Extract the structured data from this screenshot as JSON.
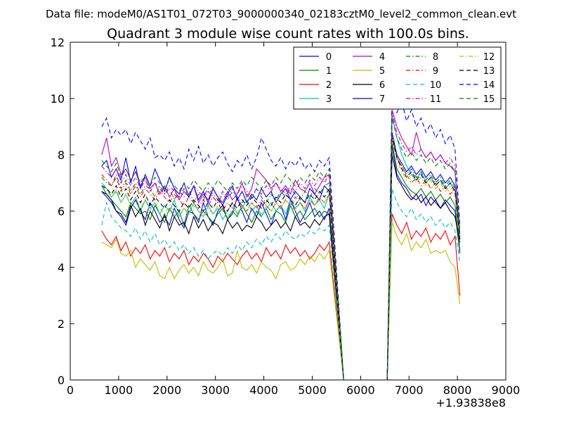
{
  "figure": {
    "suptitle": "Data file: modeM0/AS1T01_072T03_9000000340_02183cztM0_level2_common_clean.evt"
  },
  "chart_data": {
    "type": "line",
    "title": "Quadrant 3 module wise count rates with 100.0s bins.",
    "xlabel": "",
    "ylabel": "",
    "x_offset_label": "+1.93838e8",
    "xlim": [
      0,
      9000
    ],
    "ylim": [
      0,
      12
    ],
    "xticks": [
      0,
      1000,
      2000,
      3000,
      4000,
      5000,
      6000,
      7000,
      8000,
      9000
    ],
    "yticks": [
      0,
      2,
      4,
      6,
      8,
      10,
      12
    ],
    "grid": false,
    "legend_position": "top-right",
    "legend_columns": 4,
    "segments": {
      "seg1_x": {
        "start": 650,
        "step": 100,
        "count": 48
      },
      "gap_x": [
        5650,
        6550
      ],
      "seg2_x": {
        "start": 6650,
        "step": 100,
        "count": 15
      }
    },
    "series": [
      {
        "name": "0",
        "color": "#0000ff",
        "dash": "solid",
        "seg1": [
          6.7,
          6.5,
          6.3,
          6.0,
          5.8,
          5.5,
          6.1,
          6.4,
          6.0,
          5.7,
          6.3,
          6.0,
          5.6,
          5.8,
          5.5,
          6.1,
          5.7,
          5.4,
          6.0,
          5.9,
          5.6,
          6.3,
          5.8,
          5.5,
          6.0,
          6.2,
          5.7,
          5.9,
          6.5,
          6.0,
          5.6,
          6.1,
          5.8,
          6.3,
          5.9,
          5.5,
          6.0,
          6.2,
          5.7,
          6.4,
          6.0,
          5.6,
          5.9,
          6.3,
          5.8,
          6.0,
          5.7,
          6.1
        ],
        "seg2": [
          8.3,
          7.3,
          7.0,
          6.8,
          6.5,
          6.4,
          6.6,
          6.2,
          6.5,
          6.3,
          6.1,
          6.4,
          6.2,
          6.0,
          4.5
        ]
      },
      {
        "name": "1",
        "color": "#008000",
        "dash": "solid",
        "seg1": [
          6.9,
          6.6,
          6.4,
          6.2,
          6.0,
          5.8,
          6.3,
          6.1,
          5.9,
          6.0,
          5.7,
          6.2,
          5.9,
          5.6,
          6.1,
          5.8,
          6.0,
          5.5,
          6.2,
          5.9,
          5.7,
          6.0,
          5.8,
          5.6,
          5.9,
          6.1,
          5.7,
          6.0,
          5.8,
          6.2,
          5.9,
          5.6,
          6.0,
          5.8,
          6.1,
          5.7,
          6.0,
          5.9,
          5.6,
          6.2,
          5.8,
          6.0,
          5.7,
          5.9,
          6.1,
          5.8,
          6.0,
          5.9
        ],
        "seg2": [
          8.4,
          7.5,
          7.2,
          6.9,
          6.7,
          6.6,
          6.8,
          6.5,
          6.7,
          6.4,
          6.6,
          6.3,
          6.5,
          6.2,
          4.6
        ]
      },
      {
        "name": "2",
        "color": "#ff0000",
        "dash": "solid",
        "seg1": [
          5.3,
          5.0,
          4.8,
          5.1,
          4.6,
          4.9,
          4.4,
          4.7,
          4.5,
          4.8,
          4.3,
          4.6,
          4.4,
          4.7,
          4.2,
          4.5,
          4.3,
          4.6,
          4.1,
          4.4,
          4.2,
          4.5,
          4.3,
          4.0,
          4.4,
          4.2,
          4.5,
          4.3,
          4.1,
          4.4,
          4.6,
          4.3,
          4.5,
          4.2,
          4.7,
          4.4,
          4.6,
          4.3,
          4.8,
          4.5,
          4.7,
          4.4,
          4.6,
          4.3,
          4.5,
          4.8,
          4.6,
          4.9
        ],
        "seg2": [
          5.9,
          5.5,
          5.2,
          5.6,
          5.0,
          5.3,
          5.1,
          5.4,
          4.9,
          5.2,
          5.0,
          5.3,
          4.8,
          5.1,
          3.0
        ]
      },
      {
        "name": "3",
        "color": "#00bfbf",
        "dash": "solid",
        "seg1": [
          7.0,
          6.8,
          6.5,
          6.7,
          6.3,
          6.6,
          6.2,
          6.5,
          6.0,
          6.4,
          6.1,
          6.3,
          5.9,
          6.2,
          6.0,
          6.4,
          5.8,
          6.1,
          5.9,
          6.3,
          6.0,
          5.8,
          6.2,
          5.9,
          6.1,
          5.7,
          6.0,
          6.3,
          5.9,
          6.1,
          6.4,
          6.0,
          6.2,
          5.8,
          6.1,
          6.3,
          6.0,
          6.2,
          5.9,
          6.4,
          6.1,
          6.3,
          6.0,
          6.5,
          6.2,
          6.4,
          6.1,
          6.6
        ],
        "seg2": [
          9.4,
          8.6,
          8.0,
          7.6,
          7.3,
          7.1,
          7.4,
          7.0,
          7.2,
          6.9,
          7.1,
          6.8,
          7.0,
          6.7,
          4.8
        ]
      },
      {
        "name": "4",
        "color": "#bf00bf",
        "dash": "solid",
        "seg1": [
          8.0,
          8.6,
          7.6,
          7.9,
          7.3,
          7.5,
          7.1,
          7.4,
          6.9,
          7.2,
          6.8,
          7.0,
          6.6,
          6.9,
          6.5,
          6.8,
          6.4,
          6.7,
          6.5,
          6.9,
          6.3,
          6.6,
          6.4,
          6.8,
          6.5,
          6.3,
          6.7,
          6.4,
          6.6,
          7.0,
          6.5,
          6.8,
          7.5,
          7.3,
          7.1,
          6.8,
          7.0,
          6.7,
          6.9,
          6.6,
          7.1,
          6.8,
          6.7,
          7.0,
          6.6,
          6.9,
          7.2,
          7.3
        ],
        "seg2": [
          9.6,
          9.0,
          8.6,
          8.3,
          8.0,
          8.8,
          8.2,
          7.9,
          8.1,
          7.8,
          8.0,
          7.7,
          7.6,
          7.4,
          5.2
        ]
      },
      {
        "name": "5",
        "color": "#bfbf00",
        "dash": "solid",
        "seg1": [
          4.9,
          4.8,
          4.7,
          5.0,
          4.5,
          4.4,
          4.6,
          4.0,
          4.3,
          4.1,
          3.9,
          4.2,
          3.7,
          3.6,
          4.0,
          3.6,
          3.9,
          4.1,
          3.8,
          4.0,
          3.7,
          4.2,
          3.9,
          3.8,
          4.0,
          4.3,
          3.7,
          3.8,
          4.6,
          4.0,
          3.9,
          4.1,
          3.8,
          4.2,
          4.0,
          3.9,
          3.6,
          4.1,
          4.2,
          3.9,
          4.0,
          4.3,
          4.1,
          4.4,
          4.2,
          4.5,
          4.3,
          4.6
        ],
        "seg2": [
          5.6,
          5.1,
          4.8,
          5.2,
          4.6,
          4.9,
          4.7,
          5.0,
          4.5,
          4.6,
          4.5,
          4.6,
          4.2,
          4.0,
          2.7
        ]
      },
      {
        "name": "6",
        "color": "#000000",
        "dash": "solid",
        "seg1": [
          6.7,
          6.6,
          6.4,
          6.0,
          5.9,
          5.6,
          6.2,
          5.8,
          6.1,
          5.5,
          6.0,
          5.7,
          5.4,
          5.9,
          5.3,
          5.8,
          5.5,
          5.6,
          5.2,
          5.8,
          5.4,
          5.7,
          5.3,
          5.6,
          5.5,
          5.2,
          5.7,
          5.4,
          5.6,
          5.3,
          5.5,
          5.4,
          5.8,
          5.6,
          5.3,
          5.5,
          5.7,
          5.4,
          5.6,
          5.3,
          5.8,
          5.5,
          5.6,
          5.4,
          5.7,
          5.5,
          5.8,
          5.9
        ],
        "seg2": [
          8.0,
          7.2,
          6.9,
          6.6,
          6.4,
          6.6,
          6.3,
          6.5,
          6.2,
          6.4,
          6.1,
          6.3,
          6.0,
          5.8,
          4.9
        ]
      },
      {
        "name": "7",
        "color": "#0000ff",
        "dash": "solid",
        "seg1": [
          7.6,
          7.8,
          7.2,
          7.5,
          7.1,
          7.9,
          7.0,
          7.6,
          6.8,
          7.3,
          6.9,
          7.5,
          7.1,
          6.7,
          7.2,
          6.8,
          6.6,
          7.0,
          6.5,
          6.9,
          6.4,
          6.7,
          6.3,
          6.8,
          6.5,
          6.2,
          6.6,
          6.9,
          6.4,
          6.7,
          6.3,
          6.6,
          6.4,
          6.8,
          6.5,
          6.7,
          6.3,
          6.6,
          6.8,
          6.4,
          6.7,
          6.5,
          6.3,
          6.8,
          6.6,
          6.4,
          6.9,
          6.7
        ],
        "seg2": [
          8.8,
          8.0,
          7.7,
          7.4,
          7.6,
          7.3,
          7.5,
          7.2,
          7.4,
          7.1,
          7.3,
          7.0,
          7.2,
          6.9,
          5.0
        ]
      },
      {
        "name": "8",
        "color": "#008000",
        "dash": "dashdot",
        "seg1": [
          7.2,
          7.0,
          6.9,
          7.3,
          6.8,
          7.1,
          6.7,
          7.0,
          6.6,
          6.9,
          6.8,
          6.5,
          6.9,
          6.6,
          6.8,
          6.4,
          6.7,
          6.5,
          6.8,
          6.3,
          6.6,
          6.4,
          6.7,
          6.5,
          6.3,
          6.6,
          6.4,
          6.7,
          6.5,
          6.3,
          6.6,
          6.4,
          6.8,
          6.5,
          6.3,
          6.6,
          6.4,
          6.7,
          6.5,
          6.8,
          6.6,
          6.4,
          6.7,
          6.5,
          6.8,
          6.6,
          6.9,
          7.0
        ],
        "seg2": [
          8.6,
          7.9,
          7.6,
          7.3,
          7.5,
          7.2,
          7.4,
          7.1,
          7.3,
          7.0,
          7.2,
          6.9,
          7.1,
          6.8,
          5.1
        ]
      },
      {
        "name": "9",
        "color": "#ff0000",
        "dash": "dashdot",
        "seg1": [
          7.3,
          7.1,
          6.9,
          7.2,
          6.7,
          7.0,
          6.6,
          6.9,
          6.5,
          6.8,
          6.6,
          6.4,
          6.7,
          6.5,
          6.3,
          6.6,
          6.4,
          6.2,
          6.5,
          6.3,
          6.1,
          6.4,
          6.2,
          6.5,
          6.3,
          6.0,
          6.3,
          6.1,
          6.4,
          6.2,
          6.0,
          6.3,
          6.1,
          6.4,
          6.2,
          6.0,
          6.3,
          6.1,
          6.4,
          6.2,
          6.5,
          6.3,
          6.1,
          6.4,
          6.2,
          6.5,
          6.3,
          6.6
        ],
        "seg2": [
          8.7,
          7.9,
          7.6,
          7.3,
          7.0,
          7.2,
          6.9,
          7.1,
          6.8,
          7.0,
          6.7,
          6.9,
          6.6,
          6.8,
          5.0
        ]
      },
      {
        "name": "10",
        "color": "#00bfbf",
        "dash": "dashed",
        "seg1": [
          5.5,
          6.3,
          5.8,
          5.6,
          5.4,
          5.3,
          5.1,
          5.4,
          5.0,
          5.3,
          4.9,
          5.2,
          4.8,
          5.0,
          4.7,
          4.9,
          4.6,
          4.8,
          4.5,
          4.7,
          4.4,
          4.6,
          4.3,
          4.5,
          4.6,
          4.4,
          4.7,
          4.5,
          4.8,
          4.6,
          4.9,
          4.7,
          5.0,
          4.8,
          5.1,
          4.9,
          5.2,
          5.0,
          5.3,
          5.1,
          5.0,
          5.2,
          5.1,
          5.3,
          5.2,
          5.4,
          5.3,
          5.5
        ],
        "seg2": [
          6.8,
          6.3,
          6.0,
          5.8,
          6.1,
          5.7,
          5.9,
          5.6,
          5.8,
          5.5,
          5.7,
          5.4,
          5.6,
          5.3,
          4.2
        ]
      },
      {
        "name": "11",
        "color": "#bf00bf",
        "dash": "dashdot",
        "seg1": [
          7.6,
          7.4,
          7.2,
          7.5,
          7.0,
          7.3,
          6.9,
          7.2,
          6.8,
          7.1,
          6.7,
          7.0,
          6.8,
          6.6,
          6.9,
          6.7,
          6.5,
          6.8,
          6.6,
          6.9,
          6.7,
          6.5,
          6.8,
          6.6,
          6.4,
          6.7,
          6.5,
          6.8,
          6.6,
          6.9,
          6.7,
          6.5,
          6.8,
          6.6,
          6.9,
          6.7,
          7.0,
          6.8,
          6.6,
          6.9,
          6.7,
          7.0,
          6.8,
          7.1,
          6.9,
          7.2,
          7.0,
          7.3
        ],
        "seg2": [
          9.5,
          8.8,
          8.4,
          8.1,
          8.3,
          8.0,
          8.2,
          7.9,
          8.1,
          7.8,
          8.0,
          7.7,
          7.9,
          7.6,
          5.3
        ]
      },
      {
        "name": "12",
        "color": "#bfbf00",
        "dash": "dashdot",
        "seg1": [
          6.9,
          6.7,
          6.5,
          6.8,
          6.3,
          6.6,
          6.2,
          6.5,
          6.1,
          6.4,
          6.0,
          6.3,
          6.1,
          5.9,
          6.2,
          6.0,
          5.8,
          6.1,
          5.9,
          6.2,
          6.0,
          5.8,
          6.1,
          5.9,
          6.2,
          6.0,
          5.8,
          6.1,
          5.9,
          6.2,
          6.0,
          6.3,
          6.1,
          5.9,
          6.2,
          6.0,
          6.3,
          6.1,
          6.4,
          6.2,
          6.0,
          6.3,
          6.1,
          6.4,
          6.2,
          6.5,
          6.3,
          6.6
        ],
        "seg2": [
          8.5,
          7.8,
          7.4,
          7.1,
          7.3,
          7.0,
          7.2,
          6.9,
          7.1,
          6.8,
          7.0,
          6.7,
          6.9,
          6.6,
          4.9
        ]
      },
      {
        "name": "13",
        "color": "#000000",
        "dash": "dashed",
        "seg1": [
          6.9,
          6.8,
          6.6,
          6.9,
          6.5,
          6.8,
          6.4,
          6.7,
          6.3,
          6.6,
          6.2,
          6.5,
          6.3,
          6.1,
          6.4,
          6.2,
          6.0,
          6.3,
          6.1,
          6.4,
          6.2,
          6.0,
          6.3,
          6.1,
          6.4,
          6.2,
          6.0,
          6.3,
          6.1,
          6.4,
          6.2,
          6.5,
          6.3,
          6.1,
          6.4,
          6.2,
          6.5,
          6.3,
          6.6,
          6.4,
          6.2,
          6.5,
          6.3,
          6.6,
          6.4,
          6.7,
          6.5,
          6.8
        ],
        "seg2": [
          8.6,
          7.9,
          7.5,
          7.2,
          7.4,
          7.1,
          7.3,
          7.0,
          7.2,
          6.9,
          7.1,
          6.8,
          7.0,
          6.7,
          5.0
        ]
      },
      {
        "name": "14",
        "color": "#0000ff",
        "dash": "dashed",
        "seg1": [
          9.0,
          9.3,
          8.6,
          8.9,
          8.7,
          8.9,
          8.4,
          8.8,
          8.5,
          8.2,
          8.6,
          7.9,
          8.0,
          7.8,
          8.1,
          7.6,
          7.9,
          7.5,
          8.2,
          7.8,
          8.3,
          7.7,
          8.0,
          7.6,
          7.9,
          8.1,
          7.7,
          7.4,
          7.8,
          7.6,
          8.0,
          7.5,
          7.9,
          8.6,
          8.2,
          7.8,
          7.6,
          7.9,
          7.5,
          7.8,
          7.6,
          7.9,
          7.5,
          7.7,
          7.4,
          7.8,
          7.6,
          7.9
        ],
        "seg2": [
          10.2,
          9.5,
          9.9,
          9.2,
          9.6,
          9.0,
          9.3,
          8.8,
          9.1,
          8.6,
          8.9,
          8.4,
          8.7,
          8.2,
          5.5
        ]
      },
      {
        "name": "15",
        "color": "#008000",
        "dash": "dashed",
        "seg1": [
          7.8,
          7.6,
          7.4,
          7.7,
          7.2,
          7.5,
          7.1,
          7.4,
          7.0,
          7.3,
          6.9,
          7.2,
          7.0,
          6.8,
          7.1,
          6.9,
          6.7,
          7.0,
          6.8,
          7.1,
          6.9,
          6.7,
          7.0,
          6.8,
          7.1,
          6.9,
          6.7,
          7.0,
          6.8,
          7.1,
          6.9,
          7.2,
          7.0,
          6.8,
          7.1,
          6.9,
          7.2,
          7.0,
          7.3,
          7.1,
          6.9,
          7.2,
          7.0,
          7.3,
          7.1,
          7.4,
          7.2,
          7.5
        ],
        "seg2": [
          9.3,
          8.6,
          8.2,
          7.9,
          8.1,
          7.8,
          8.0,
          7.7,
          7.9,
          7.6,
          7.8,
          7.5,
          7.7,
          7.4,
          5.2
        ]
      }
    ]
  }
}
